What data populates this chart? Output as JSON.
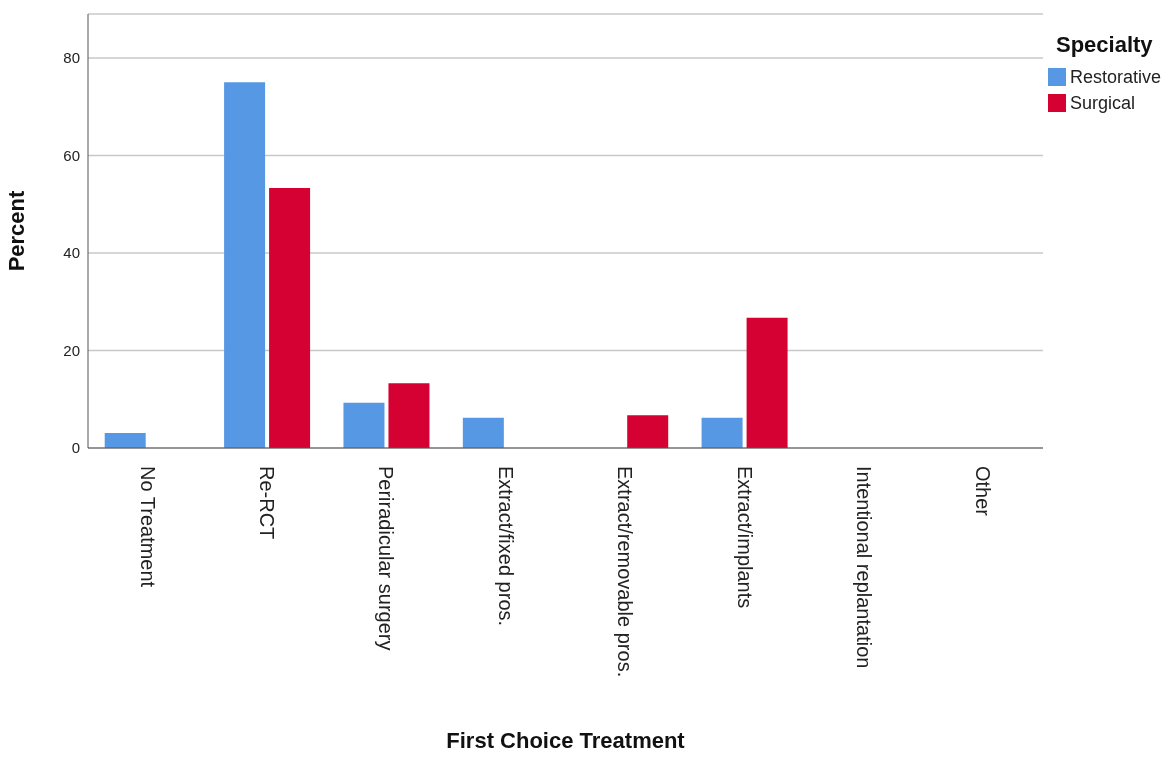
{
  "chart_data": {
    "type": "bar",
    "xlabel": "First Choice Treatment",
    "ylabel": "Percent",
    "legend_title": "Specialty",
    "categories": [
      "No Treatment",
      "Re-RCT",
      "Periradicular surgery",
      "Extract/fixed pros.",
      "Extract/removable pros.",
      "Extract/implants",
      "Intentional replantation",
      "Other"
    ],
    "series": [
      {
        "name": "Restorative",
        "color": "#5698e4",
        "values": [
          3.1,
          75,
          9.3,
          6.2,
          0,
          6.2,
          0,
          0
        ]
      },
      {
        "name": "Surgical",
        "color": "#d40132",
        "values": [
          0,
          53.3,
          13.3,
          0,
          6.7,
          26.7,
          0,
          0
        ]
      }
    ],
    "ylim": [
      0,
      89
    ],
    "yticks": [
      0,
      20,
      40,
      60,
      80
    ],
    "grid": "y",
    "legend": "top right"
  }
}
